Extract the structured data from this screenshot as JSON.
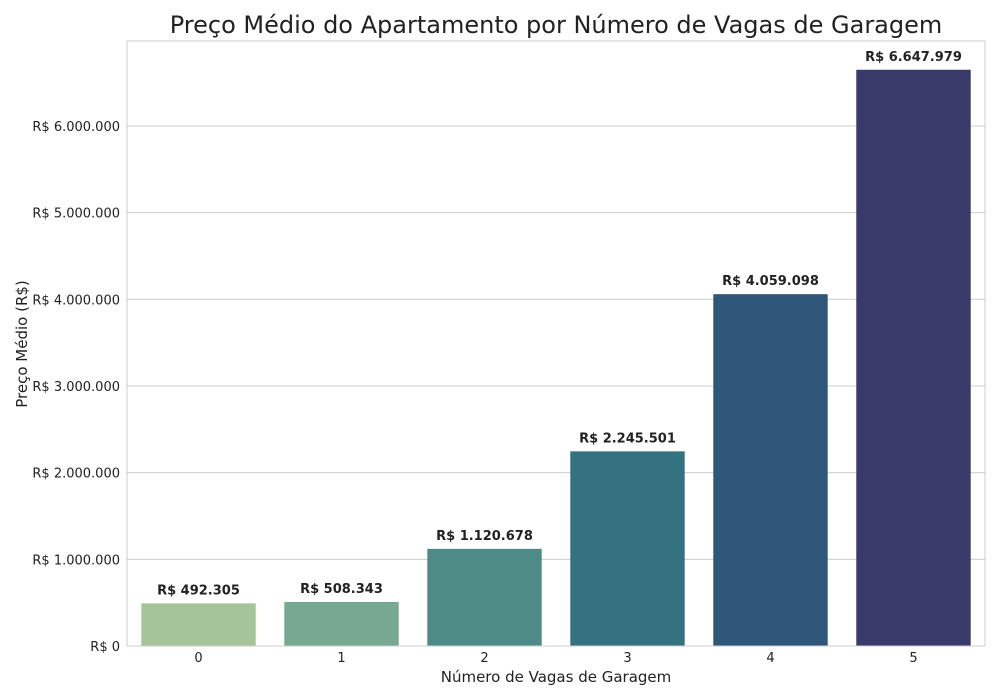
{
  "chart_data": {
    "type": "bar",
    "title": "Preço Médio do Apartamento por Número de Vagas de Garagem",
    "xlabel": "Número de Vagas de Garagem",
    "ylabel": "Preço Médio (R$)",
    "categories": [
      "0",
      "1",
      "2",
      "3",
      "4",
      "5"
    ],
    "values": [
      492305,
      508343,
      1120678,
      2245501,
      4059098,
      6647979
    ],
    "data_labels": [
      "R$ 492.305",
      "R$ 508.343",
      "R$ 1.120.678",
      "R$ 2.245.501",
      "R$ 4.059.098",
      "R$ 6.647.979"
    ],
    "bar_colors": [
      "#a6c49a",
      "#77a892",
      "#4f8b86",
      "#347281",
      "#2e5679",
      "#383a69"
    ],
    "yticks": [
      0,
      1000000,
      2000000,
      3000000,
      4000000,
      5000000,
      6000000
    ],
    "ytick_labels": [
      "R$ 0",
      "R$ 1.000.000",
      "R$ 2.000.000",
      "R$ 3.000.000",
      "R$ 4.000.000",
      "R$ 5.000.000",
      "R$ 6.000.000"
    ],
    "ylim": [
      0,
      6980000
    ],
    "grid": "horizontal",
    "legend": "none"
  }
}
